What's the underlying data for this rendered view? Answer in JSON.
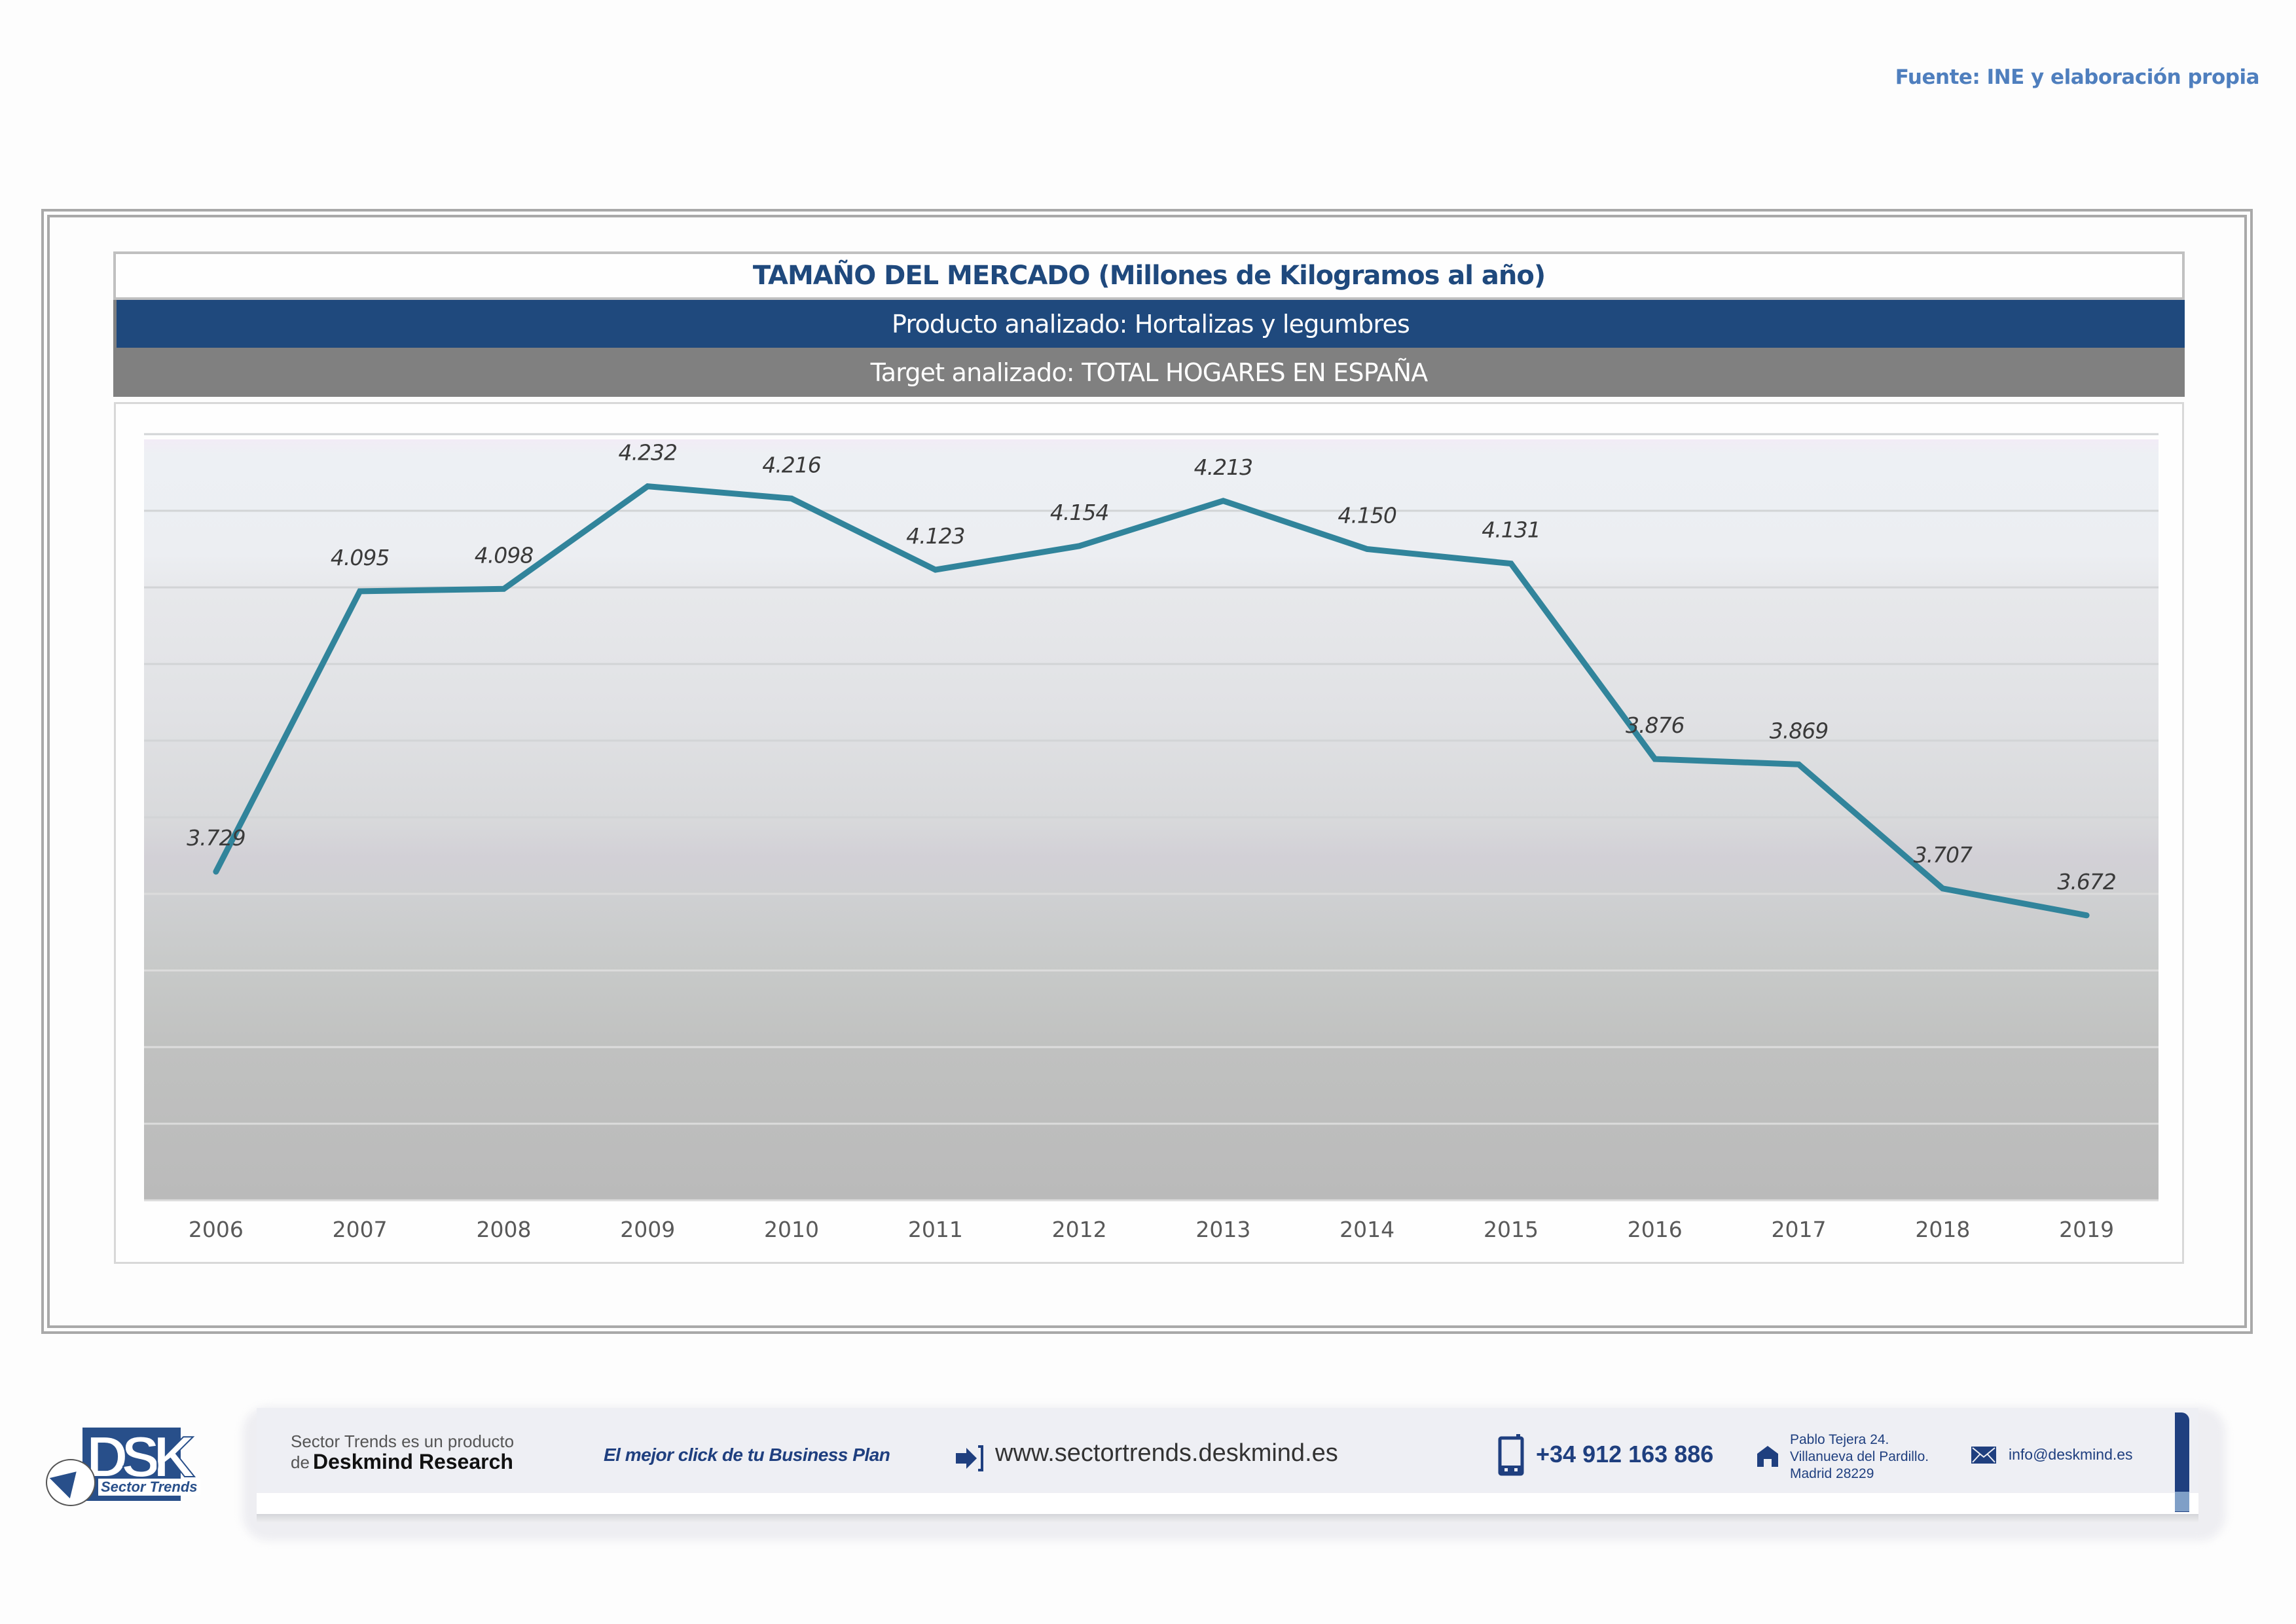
{
  "source_note": "Fuente: INE y elaboración propia",
  "header": {
    "title": "TAMAÑO DEL MERCADO (Millones de Kilogramos al año)",
    "product": "Producto analizado: Hortalizas y legumbres",
    "target": "Target analizado: TOTAL HOGARES EN ESPAÑA"
  },
  "colors": {
    "line": "#31849b",
    "title_text": "#1f497d",
    "product_band": "#1f497d",
    "target_band": "#808080",
    "source_text": "#4f7fbe",
    "brand": "#1f3f7f"
  },
  "chart_data": {
    "type": "line",
    "title": "TAMAÑO DEL MERCADO (Millones de Kilogramos al año)",
    "xlabel": "",
    "ylabel": "",
    "categories": [
      "2006",
      "2007",
      "2008",
      "2009",
      "2010",
      "2011",
      "2012",
      "2013",
      "2014",
      "2015",
      "2016",
      "2017",
      "2018",
      "2019"
    ],
    "series": [
      {
        "name": "Hortalizas y legumbres - Total hogares en España",
        "values": [
          3.729,
          4.095,
          4.098,
          4.232,
          4.216,
          4.123,
          4.154,
          4.213,
          4.15,
          4.131,
          3.876,
          3.869,
          3.707,
          3.672
        ],
        "labels": [
          "3.729",
          "4.095",
          "4.098",
          "4.232",
          "4.216",
          "4.123",
          "4.154",
          "4.213",
          "4.150",
          "4.131",
          "3.876",
          "3.869",
          "3.707",
          "3.672"
        ]
      }
    ],
    "ylim": [
      3.3,
      4.3
    ],
    "y_gridlines": [
      3.3,
      3.4,
      3.5,
      3.6,
      3.7,
      3.8,
      3.9,
      4.0,
      4.1,
      4.2,
      4.3
    ],
    "y_tick_labels_visible": false,
    "grid": true,
    "legend": "none",
    "data_labels": "above-italic"
  },
  "footer": {
    "logo_text": "DSK",
    "logo_subtitle": "Sector Trends",
    "product_line": "Sector Trends es un producto",
    "company_prefix": "de",
    "company": "Deskmind Research",
    "slogan": "El mejor click de tu Business Plan",
    "url": "www.sectortrends.deskmind.es",
    "phone": "+34 912 163 886",
    "address": [
      "Pablo Tejera 24.",
      "Villanueva del Pardillo.",
      "Madrid 28229"
    ],
    "email": "info@deskmind.es",
    "icons": {
      "url": "login-arrow-icon",
      "phone": "mobile-phone-icon",
      "address": "home-icon",
      "email": "envelope-icon"
    }
  }
}
